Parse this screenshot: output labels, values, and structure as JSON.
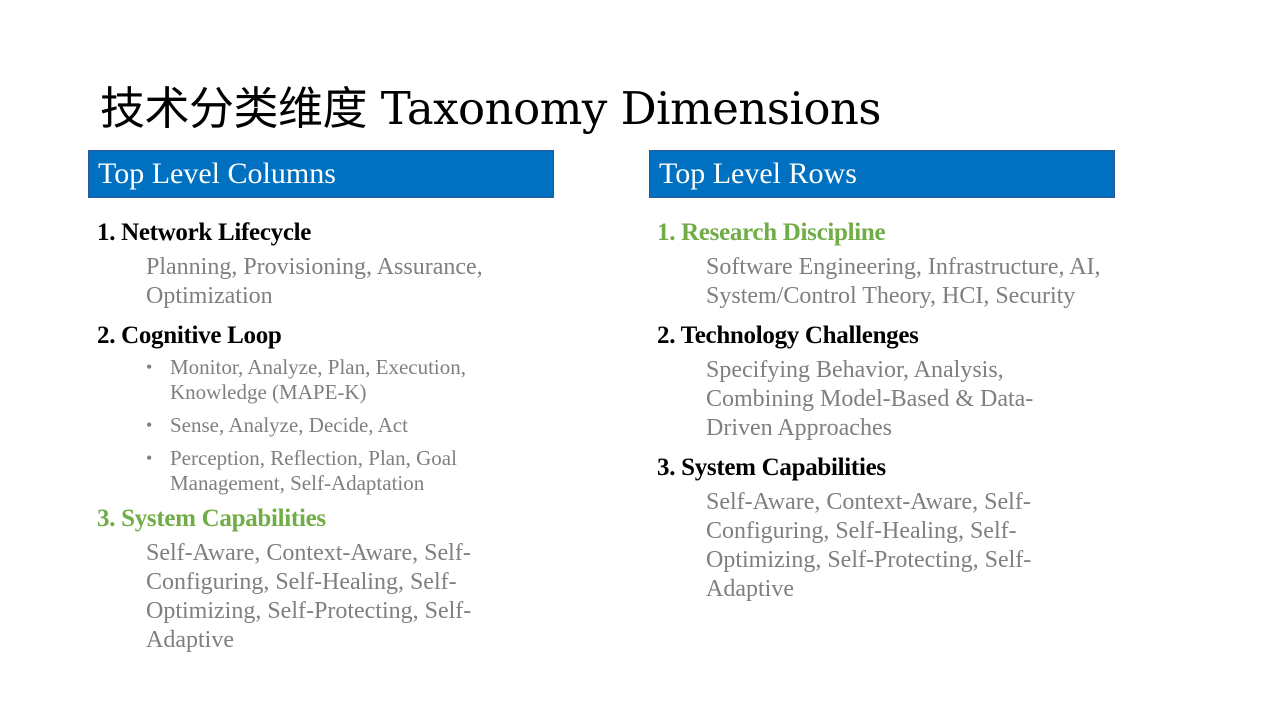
{
  "slide": {
    "title": "技术分类维度 Taxonomy Dimensions"
  },
  "left_column": {
    "header": "Top Level Columns",
    "sections": [
      {
        "title": "1. Network Lifecycle",
        "body": "Planning, Provisioning, Assurance, Optimization"
      },
      {
        "title": "2. Cognitive Loop",
        "bullets": [
          "Monitor, Analyze, Plan, Execution, Knowledge (MAPE-K)",
          "Sense, Analyze, Decide, Act",
          "Perception, Reflection, Plan, Goal Management, Self-Adaptation"
        ]
      },
      {
        "title": "3. System Capabilities",
        "body": "Self-Aware, Context-Aware, Self-Configuring, Self-Healing, Self-Optimizing, Self-Protecting, Self-Adaptive"
      }
    ]
  },
  "right_column": {
    "header": "Top Level Rows",
    "sections": [
      {
        "title": "1. Research Discipline",
        "body": "Software Engineering, Infrastructure, AI, System/Control Theory, HCI, Security"
      },
      {
        "title": "2. Technology Challenges",
        "body": "Specifying Behavior, Analysis, Combining Model-Based & Data-Driven Approaches"
      },
      {
        "title": "3. System Capabilities",
        "body": "Self-Aware, Context-Aware, Self-Configuring, Self-Healing, Self-Optimizing, Self-Protecting, Self-Adaptive"
      }
    ]
  },
  "colors": {
    "header_bg": "#0070c0",
    "highlight_green": "#70ad47",
    "body_gray": "#7f7f7f",
    "bullet_glyph": "•"
  }
}
